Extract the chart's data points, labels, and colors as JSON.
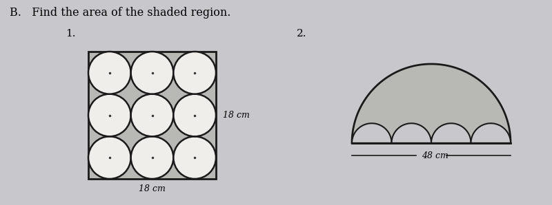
{
  "bg_color": "#c8c8cc",
  "title_text": "B.   Find the area of the shaded region.",
  "title_fontsize": 11.5,
  "label1": "1.",
  "label2": "2.",
  "fig1_bottom_label": "18 cm",
  "fig1_side_label": "18 cm",
  "fig2_label": "48 cm",
  "shaded_color": "#b8b8b4",
  "white_color": "#f0eeea",
  "line_color": "#1a1a1a",
  "dot_color": "#333333"
}
